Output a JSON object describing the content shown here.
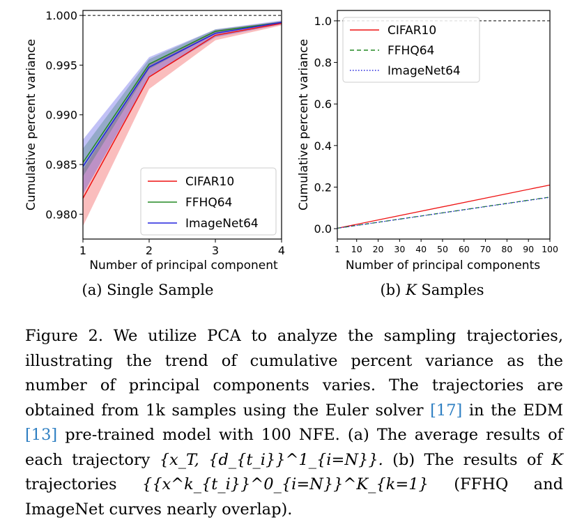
{
  "colors": {
    "cifar": "#ee1111",
    "ffhq": "#228822",
    "imagenet": "#2222dd",
    "ref_line": "#000000"
  },
  "chart_data": [
    {
      "type": "line",
      "subtitle": "(a) Single Sample",
      "xlabel": "Number of principal component",
      "ylabel": "Cumulative percent variance",
      "x": [
        1,
        2,
        3,
        4
      ],
      "xticks": [
        "1",
        "2",
        "3",
        "4"
      ],
      "ylim": [
        0.9775,
        1.0005
      ],
      "yticks": [
        0.98,
        0.985,
        0.99,
        0.995,
        1.0
      ],
      "ytick_labels": [
        "0.980",
        "0.985",
        "0.990",
        "0.995",
        "1.000"
      ],
      "reference_line": 1.0,
      "legend": "lower-right",
      "series": [
        {
          "name": "CIFAR10",
          "color": "cifar",
          "style": "solid",
          "values": [
            0.9816,
            0.9938,
            0.998,
            0.9992
          ],
          "band_low": [
            0.9788,
            0.9926,
            0.9975,
            0.999
          ],
          "band_high": [
            0.9845,
            0.9951,
            0.9985,
            0.9994
          ]
        },
        {
          "name": "FFHQ64",
          "color": "ffhq",
          "style": "solid",
          "values": [
            0.9852,
            0.9951,
            0.9984,
            0.9993
          ],
          "band_low": [
            0.9838,
            0.9946,
            0.9982,
            0.9992
          ],
          "band_high": [
            0.9866,
            0.9956,
            0.9986,
            0.9994
          ]
        },
        {
          "name": "ImageNet64",
          "color": "imagenet",
          "style": "solid",
          "values": [
            0.9848,
            0.9948,
            0.9982,
            0.9993
          ],
          "band_low": [
            0.982,
            0.9938,
            0.9978,
            0.9991
          ],
          "band_high": [
            0.9875,
            0.9958,
            0.9986,
            0.9995
          ]
        }
      ]
    },
    {
      "type": "line",
      "subtitle_prefix": "(b) ",
      "subtitle_var": "K",
      "subtitle_suffix": " Samples",
      "xlabel": "Number of principal components",
      "ylabel": "Cumulative percent variance",
      "xlim": [
        1,
        100
      ],
      "xticks": [
        1,
        10,
        20,
        30,
        40,
        50,
        60,
        70,
        80,
        90,
        100
      ],
      "xtick_labels": [
        "1",
        "10",
        "20",
        "30",
        "40",
        "50",
        "60",
        "70",
        "80",
        "90",
        "100"
      ],
      "ylim": [
        -0.05,
        1.05
      ],
      "yticks": [
        0.0,
        0.2,
        0.4,
        0.6,
        0.8,
        1.0
      ],
      "ytick_labels": [
        "0.0",
        "0.2",
        "0.4",
        "0.6",
        "0.8",
        "1.0"
      ],
      "reference_line": 1.0,
      "legend": "top-left",
      "series": [
        {
          "name": "CIFAR10",
          "color": "cifar",
          "style": "solid",
          "x": [
            1,
            100
          ],
          "values": [
            0.002,
            0.21
          ]
        },
        {
          "name": "FFHQ64",
          "color": "ffhq",
          "style": "dashed",
          "x": [
            1,
            100
          ],
          "values": [
            0.002,
            0.152
          ]
        },
        {
          "name": "ImageNet64",
          "color": "imagenet",
          "style": "dotted",
          "x": [
            1,
            100
          ],
          "values": [
            0.002,
            0.151
          ]
        }
      ]
    }
  ],
  "caption": {
    "figure_label": "Figure 2.",
    "text1": " We utilize PCA to analyze the sampling trajectories, illustrating the trend of cumulative percent variance as the number of principal components varies. The trajectories are obtained from 1k samples using the Euler solver ",
    "ref1": "[17]",
    "text2": " in the EDM ",
    "ref2": "[13]",
    "text3": " pre-trained model with 100 NFE. (a) The average results of each trajectory ",
    "math1": "{x_T, {d_{t_i}}^1_{i=N}}.",
    "text4": " (b) The results of ",
    "math2": "K",
    "text5": " trajectories ",
    "math3": "{{x^k_{t_i}}^0_{i=N}}^K_{k=1}",
    "text6": " (FFHQ and ImageNet curves nearly overlap)."
  }
}
